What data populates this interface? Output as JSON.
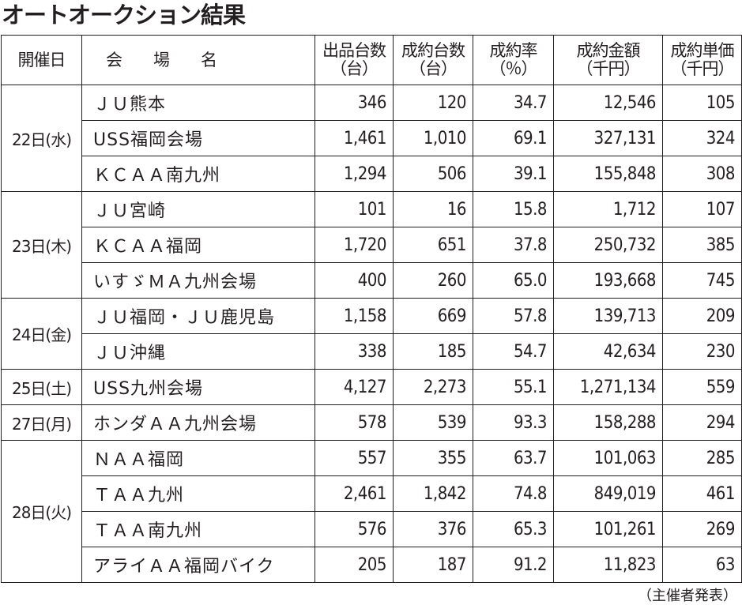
{
  "title": "オートオークション結果",
  "headers": [
    {
      "line1": "開催日",
      "line2": ""
    },
    {
      "line1": "会　　場　　名",
      "line2": ""
    },
    {
      "line1": "出品台数",
      "line2": "（台）"
    },
    {
      "line1": "成約台数",
      "line2": "（台）"
    },
    {
      "line1": "成約率",
      "line2": "（％）"
    },
    {
      "line1": "成約金額",
      "line2": "（千円）"
    },
    {
      "line1": "成約単価",
      "line2": "（千円）"
    }
  ],
  "groups": [
    {
      "date": "22日(水)",
      "rows": [
        [
          "ＪＵ熊本",
          "346",
          "120",
          "34.7",
          "12,546",
          "105"
        ],
        [
          "USS福岡会場",
          "1,461",
          "1,010",
          "69.1",
          "327,131",
          "324"
        ],
        [
          "ＫＣＡＡ南九州",
          "1,294",
          "506",
          "39.1",
          "155,848",
          "308"
        ]
      ]
    },
    {
      "date": "23日(木)",
      "rows": [
        [
          "ＪＵ宮崎",
          "101",
          "16",
          "15.8",
          "1,712",
          "107"
        ],
        [
          "ＫＣＡＡ福岡",
          "1,720",
          "651",
          "37.8",
          "250,732",
          "385"
        ],
        [
          "いすゞＭＡ九州会場",
          "400",
          "260",
          "65.0",
          "193,668",
          "745"
        ]
      ]
    },
    {
      "date": "24日(金)",
      "rows": [
        [
          "ＪＵ福岡・ＪＵ鹿児島",
          "1,158",
          "669",
          "57.8",
          "139,713",
          "209"
        ],
        [
          "ＪＵ沖縄",
          "338",
          "185",
          "54.7",
          "42,634",
          "230"
        ]
      ]
    },
    {
      "date": "25日(土)",
      "rows": [
        [
          "USS九州会場",
          "4,127",
          "2,273",
          "55.1",
          "1,271,134",
          "559"
        ]
      ]
    },
    {
      "date": "27日(月)",
      "rows": [
        [
          "ホンダＡＡ九州会場",
          "578",
          "539",
          "93.3",
          "158,288",
          "294"
        ]
      ]
    },
    {
      "date": "28日(火)",
      "rows": [
        [
          "ＮＡＡ福岡",
          "557",
          "355",
          "63.7",
          "101,063",
          "285"
        ],
        [
          "ＴＡＡ九州",
          "2,461",
          "1,842",
          "74.8",
          "849,019",
          "461"
        ],
        [
          "ＴＡＡ南九州",
          "576",
          "376",
          "65.3",
          "101,261",
          "269"
        ],
        [
          "アライＡＡ福岡バイク",
          "205",
          "187",
          "91.2",
          "11,823",
          "63"
        ]
      ]
    }
  ],
  "footer": "（主催者発表）"
}
